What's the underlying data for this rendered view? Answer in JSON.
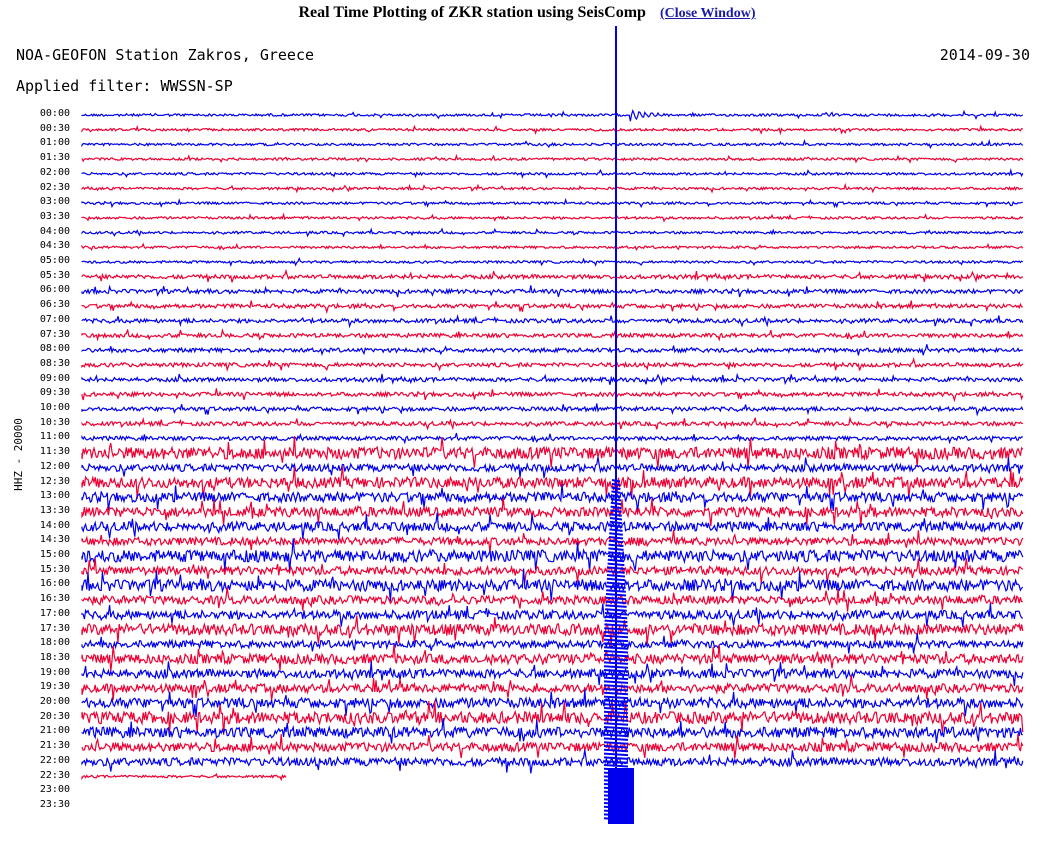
{
  "header": {
    "title": "Real Time Plotting of ZKR station using SeisComp",
    "close_link": "(Close Window)"
  },
  "plot": {
    "station": "NOA-GEOFON Station Zakros, Greece",
    "date": "2014-09-30",
    "filter": "Applied filter: WWSSN-SP",
    "channel": "HHZ - 20000",
    "colors": {
      "odd": "#0000ee",
      "even": "#ee0033",
      "background": "#ffffff"
    },
    "times": [
      "00:00",
      "00:30",
      "01:00",
      "01:30",
      "02:00",
      "02:30",
      "03:00",
      "03:30",
      "04:00",
      "04:30",
      "05:00",
      "05:30",
      "06:00",
      "06:30",
      "07:00",
      "07:30",
      "08:00",
      "08:30",
      "09:00",
      "09:30",
      "10:00",
      "10:30",
      "11:00",
      "11:30",
      "12:00",
      "12:30",
      "13:00",
      "13:30",
      "14:00",
      "14:30",
      "15:00",
      "15:30",
      "16:00",
      "16:30",
      "17:00",
      "17:30",
      "18:00",
      "18:30",
      "19:00",
      "19:30",
      "20:00",
      "20:30",
      "21:00",
      "21:30",
      "22:00",
      "22:30",
      "23:00",
      "23:30"
    ]
  }
}
